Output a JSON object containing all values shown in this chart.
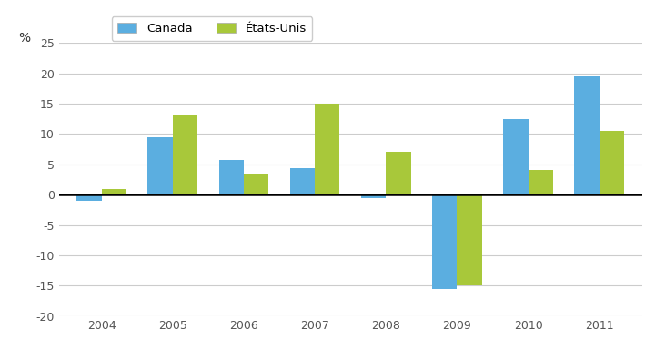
{
  "years": [
    2004,
    2005,
    2006,
    2007,
    2008,
    2009,
    2010,
    2011
  ],
  "canada": [
    -1.0,
    9.5,
    5.7,
    4.3,
    -0.5,
    -15.5,
    12.5,
    19.5
  ],
  "usa": [
    1.0,
    13.0,
    3.5,
    15.0,
    7.0,
    -15.0,
    4.0,
    10.5
  ],
  "canada_color": "#5baee0",
  "usa_color": "#a8c83a",
  "background_color": "#ffffff",
  "ylim": [
    -20,
    25
  ],
  "yticks": [
    -20,
    -15,
    -10,
    -5,
    0,
    5,
    10,
    15,
    20,
    25
  ],
  "ylabel": "%",
  "legend_canada": "Canada",
  "legend_usa": "États-Unis",
  "bar_width": 0.35,
  "grid_color": "#cccccc"
}
